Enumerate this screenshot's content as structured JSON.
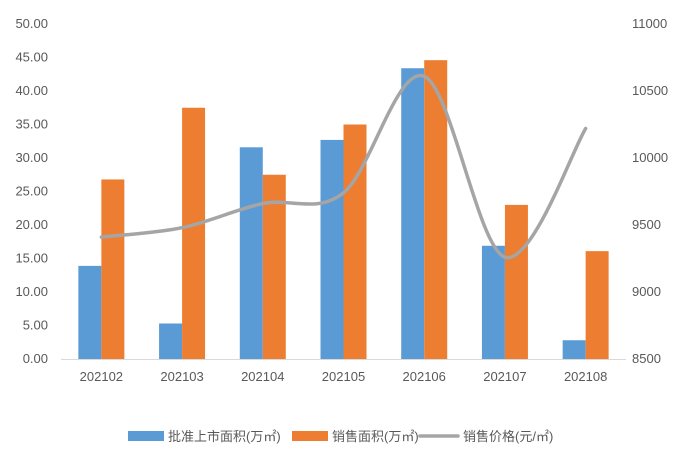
{
  "chart_data": {
    "type": "bar",
    "categories": [
      "202102",
      "202103",
      "202104",
      "202105",
      "202106",
      "202107",
      "202108"
    ],
    "series": [
      {
        "name": "批准上市面积(万㎡)",
        "kind": "bar",
        "axis": "left",
        "color": "#5B9BD5",
        "values": [
          13.9,
          5.3,
          31.6,
          32.7,
          43.4,
          16.9,
          2.8
        ]
      },
      {
        "name": "销售面积(万㎡)",
        "kind": "bar",
        "axis": "left",
        "color": "#ED7D31",
        "values": [
          26.8,
          37.5,
          27.5,
          35.0,
          44.6,
          23.0,
          16.1
        ]
      },
      {
        "name": "销售价格(元/㎡)",
        "kind": "line",
        "axis": "right",
        "color": "#A5A5A5",
        "smooth": true,
        "values": [
          9410,
          9480,
          9660,
          9740,
          10610,
          9260,
          10220
        ]
      }
    ],
    "y_left": {
      "min": 0,
      "max": 50,
      "step": 5,
      "ticks": [
        "0.00",
        "5.00",
        "10.00",
        "15.00",
        "20.00",
        "25.00",
        "30.00",
        "35.00",
        "40.00",
        "45.00",
        "50.00"
      ]
    },
    "y_right": {
      "min": 8500,
      "max": 11000,
      "step": 500,
      "ticks": [
        "8500",
        "9000",
        "9500",
        "10000",
        "10500",
        "11000"
      ]
    },
    "grid": false,
    "legend_position": "bottom"
  }
}
